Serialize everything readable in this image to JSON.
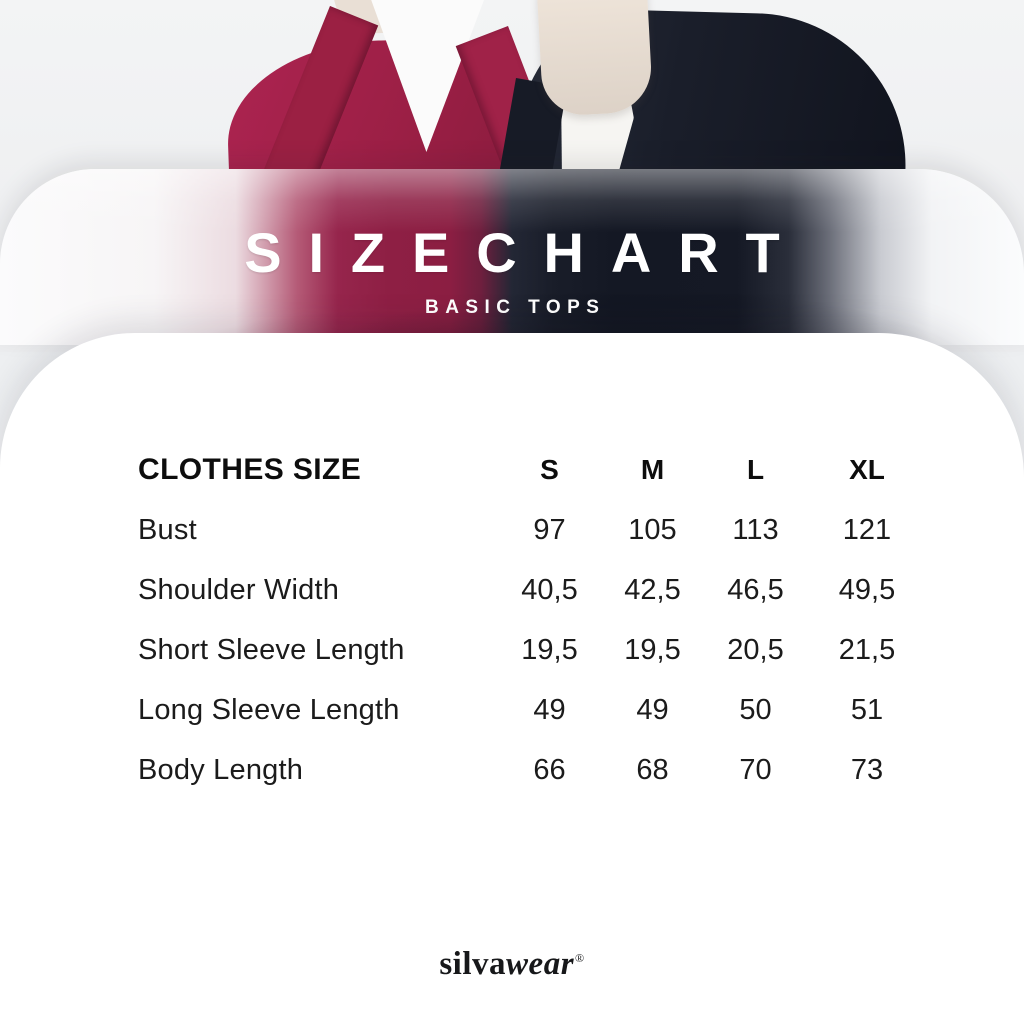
{
  "banner": {
    "title": "SIZECHART",
    "subtitle": "BASIC TOPS"
  },
  "chart_data": {
    "type": "table",
    "title": "SIZECHART",
    "subtitle": "BASIC TOPS",
    "columns": [
      "CLOTHES SIZE",
      "S",
      "M",
      "L",
      "XL"
    ],
    "rows": [
      {
        "label": "Bust",
        "values": [
          "97",
          "105",
          "113",
          "121"
        ]
      },
      {
        "label": "Shoulder Width",
        "values": [
          "40,5",
          "42,5",
          "46,5",
          "49,5"
        ]
      },
      {
        "label": "Short Sleeve Length",
        "values": [
          "19,5",
          "19,5",
          "20,5",
          "21,5"
        ]
      },
      {
        "label": "Long Sleeve Length",
        "values": [
          "49",
          "49",
          "50",
          "51"
        ]
      },
      {
        "label": "Body Length",
        "values": [
          "66",
          "68",
          "70",
          "73"
        ]
      }
    ]
  },
  "brand": {
    "name_regular": "silva",
    "name_italic": "wear",
    "registered_mark": "®"
  },
  "colors": {
    "maroon_top": "#9B1F45",
    "navy_top": "#151924",
    "hijab_beige": "#E7DDD3",
    "background_gray": "#EDEFF1",
    "card_white": "#FFFFFF",
    "text_black": "#1B1B1B"
  }
}
